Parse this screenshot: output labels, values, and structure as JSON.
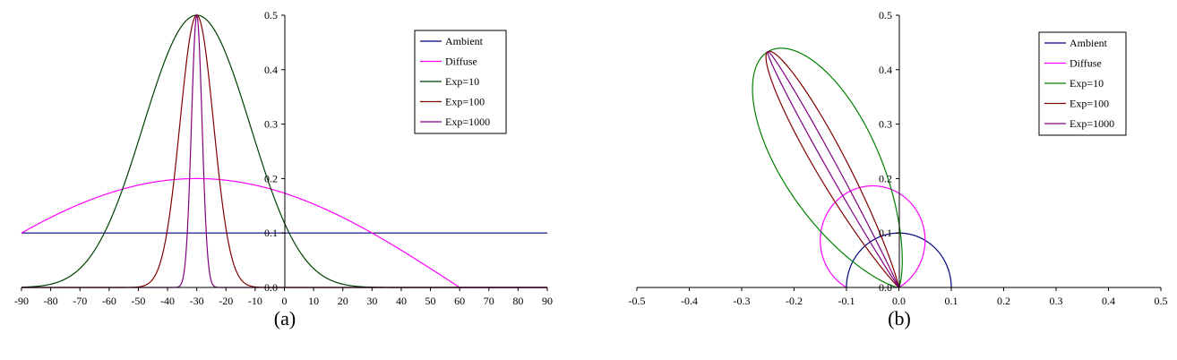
{
  "chart_data": [
    {
      "type": "line",
      "caption": "(a)",
      "xlim": [
        -90,
        90
      ],
      "ylim": [
        0,
        0.5
      ],
      "x_ticks": [
        "-90",
        "-80",
        "-70",
        "-60",
        "-50",
        "-40",
        "-30",
        "-20",
        "-10",
        "0",
        "10",
        "20",
        "30",
        "40",
        "50",
        "60",
        "70",
        "80",
        "90"
      ],
      "y_ticks": [
        "0.0",
        "0.1",
        "0.2",
        "0.3",
        "0.4",
        "0.5"
      ],
      "legend_position": "top-right",
      "grid": false,
      "light_angle_deg": 30,
      "view_angle_deg": 0,
      "ambient_coefficient": 0.1,
      "diffuse_peak": 0.2,
      "specular_peak": 0.5,
      "series": [
        {
          "name": "Ambient",
          "color": "#000080",
          "model": "ambient"
        },
        {
          "name": "Diffuse",
          "color": "#ff00ff",
          "model": "diffuse"
        },
        {
          "name": "Exp=10",
          "color": "#004000",
          "model": "specular",
          "exponent": 10
        },
        {
          "name": "Exp=100",
          "color": "#800000",
          "model": "specular",
          "exponent": 100
        },
        {
          "name": "Exp=1000",
          "color": "#800080",
          "model": "specular",
          "exponent": 1000
        }
      ]
    },
    {
      "type": "polar-line",
      "caption": "(b)",
      "xlim": [
        -0.5,
        0.5
      ],
      "ylim": [
        0,
        0.5
      ],
      "x_ticks": [
        "-0.5",
        "-0.4",
        "-0.3",
        "-0.2",
        "-0.1",
        "0.0",
        "0.1",
        "0.2",
        "0.3",
        "0.4",
        "0.5"
      ],
      "y_ticks": [
        "0.0",
        "0.1",
        "0.2",
        "0.3",
        "0.4",
        "0.5"
      ],
      "legend_position": "top-right",
      "grid": false,
      "light_angle_deg": 30,
      "view_angle_deg": 0,
      "ambient_coefficient": 0.1,
      "diffuse_peak": 0.2,
      "specular_peak": 0.5,
      "series": [
        {
          "name": "Ambient",
          "color": "#000080",
          "model": "ambient"
        },
        {
          "name": "Diffuse",
          "color": "#ff00ff",
          "model": "diffuse"
        },
        {
          "name": "Exp=10",
          "color": "#008000",
          "model": "specular",
          "exponent": 10
        },
        {
          "name": "Exp=100",
          "color": "#800000",
          "model": "specular",
          "exponent": 100
        },
        {
          "name": "Exp=1000",
          "color": "#800080",
          "model": "specular",
          "exponent": 1000
        }
      ]
    }
  ]
}
